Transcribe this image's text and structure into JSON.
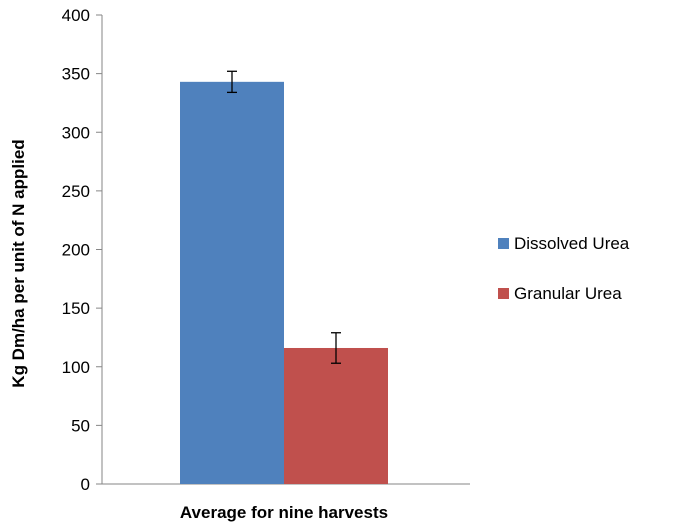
{
  "chart_data": {
    "type": "bar",
    "title": "",
    "xlabel": "",
    "ylabel": "Kg Dm/ha per unit of N applied",
    "categories": [
      "Average for nine harvests"
    ],
    "series": [
      {
        "name": "Dissolved Urea",
        "values": [
          343
        ],
        "error": [
          9
        ],
        "color": "#4f81bd"
      },
      {
        "name": "Granular Urea",
        "values": [
          116
        ],
        "error": [
          13
        ],
        "color": "#c0504d"
      }
    ],
    "ylim": [
      0,
      400
    ],
    "yticks": [
      0,
      50,
      100,
      150,
      200,
      250,
      300,
      350,
      400
    ],
    "grid": false,
    "legend_position": "right"
  }
}
